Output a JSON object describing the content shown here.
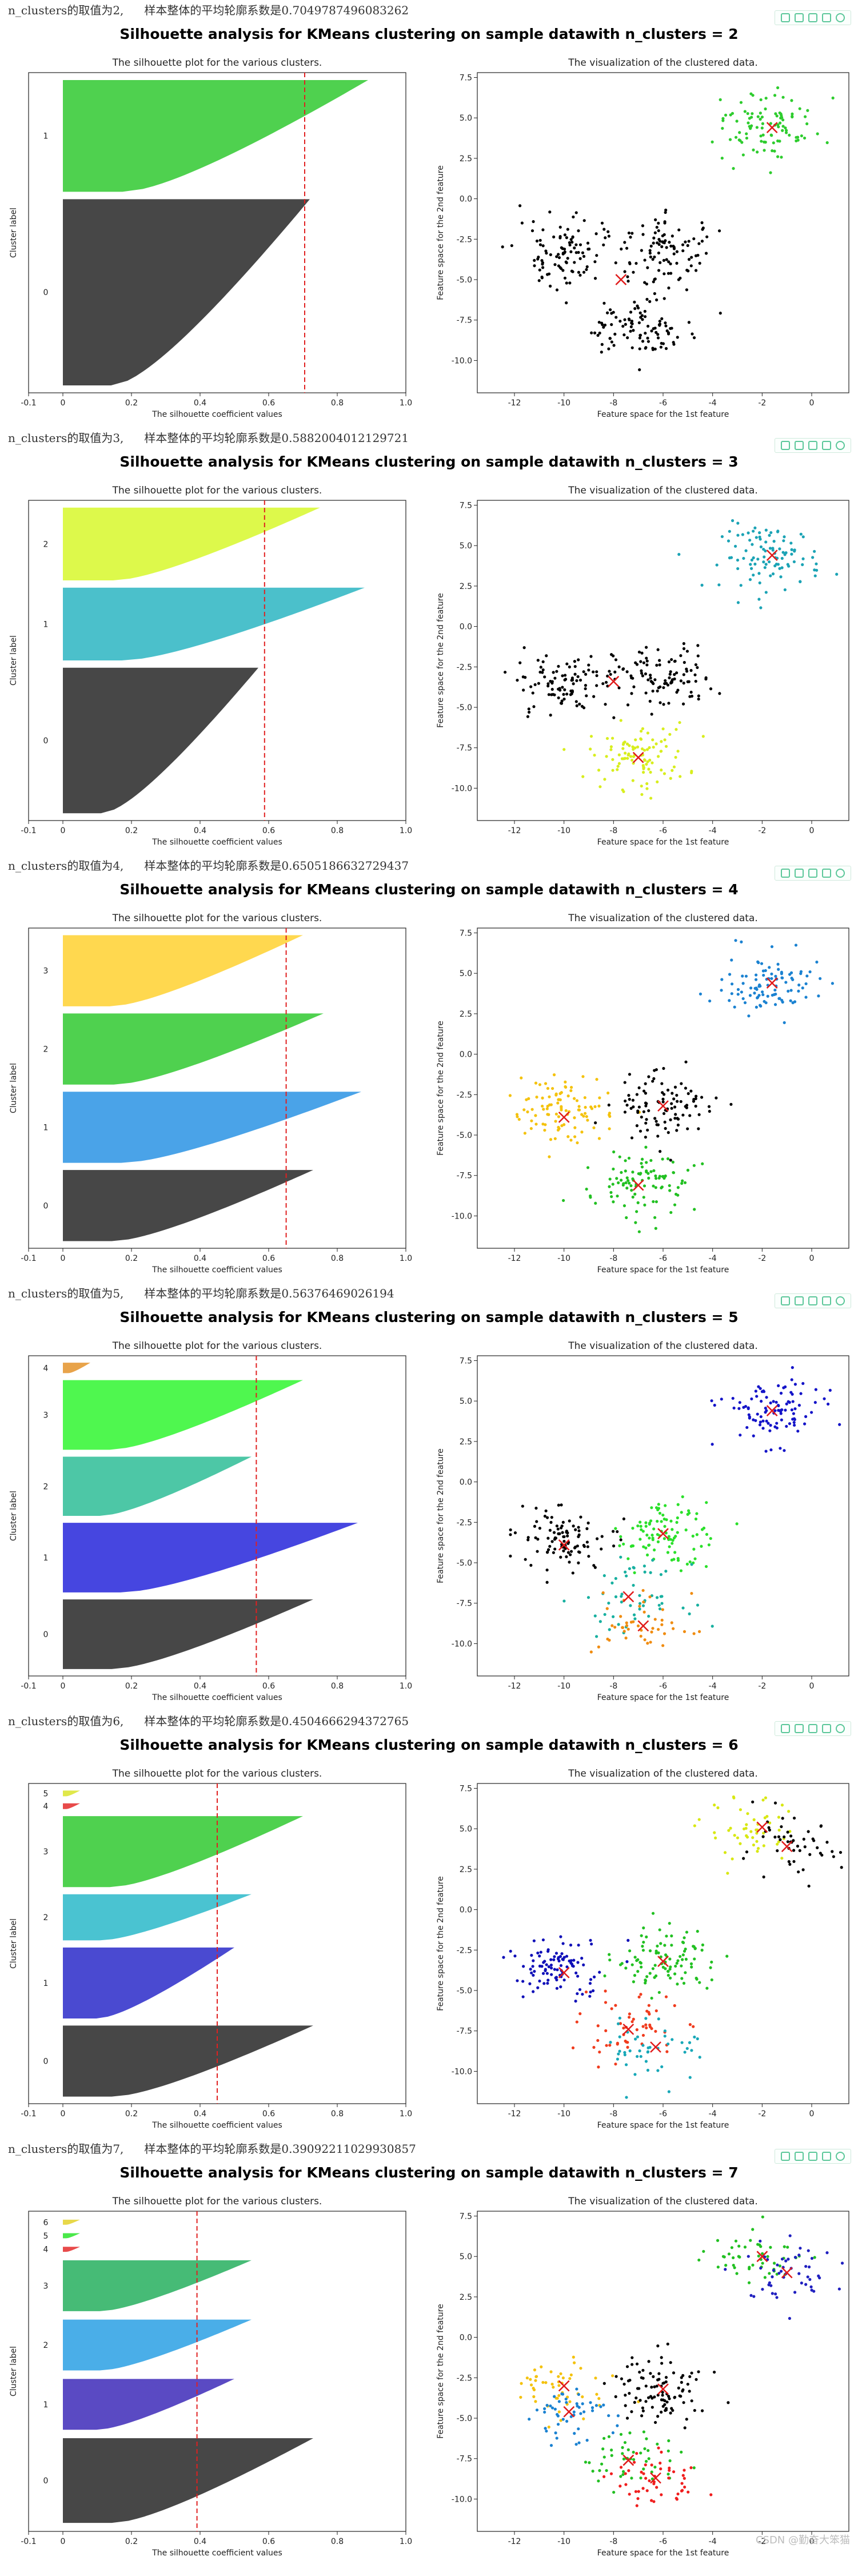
{
  "toolbar_icons": [
    "save-icon",
    "fullscreen-icon",
    "copy-icon",
    "export-icon",
    "settings-icon"
  ],
  "footer": "CSDN @勤奋大笨猫",
  "chart_data": [
    {
      "type": "scatter",
      "header": {
        "k_text": "n_clusters的取值为2,",
        "score_text": "样本整体的平均轮廓系数是0.7049787496083262"
      },
      "suptitle": "Silhouette analysis for KMeans clustering on sample datawith n_clusters = 2",
      "silhouette": {
        "title": "The silhouette plot for the various clusters.",
        "xlabel": "The silhouette coefficient values",
        "ylabel": "Cluster label",
        "xlim": [
          -0.1,
          1.0
        ],
        "xticks": [
          "-0.1",
          "0",
          "0.2",
          "0.4",
          "0.6",
          "0.8",
          "1.0"
        ],
        "avg": 0.705,
        "clusters": [
          {
            "label": "0",
            "size": 250,
            "max": 0.72,
            "color": "#474747"
          },
          {
            "label": "1",
            "size": 150,
            "max": 0.89,
            "color": "#4fd14f"
          }
        ]
      },
      "scatter": {
        "title": "The visualization of the clustered data.",
        "xlabel": "Feature space for the 1st feature",
        "ylabel": "Feature space for the 2nd feature",
        "xlim": [
          -13.5,
          1.5
        ],
        "ylim": [
          -12,
          7.8
        ],
        "xticks": [
          "-12",
          "-10",
          "-8",
          "-6",
          "-4",
          "-2",
          "0"
        ],
        "yticks": [
          "7.5",
          "5.0",
          "2.5",
          "0.0",
          "-2.5",
          "-5.0",
          "-7.5",
          "-10.0"
        ],
        "blobs": [
          {
            "cx": -10,
            "cy": -3.5,
            "n": 100,
            "color": "#000000"
          },
          {
            "cx": -6,
            "cy": -3.2,
            "n": 100,
            "color": "#000000"
          },
          {
            "cx": -7,
            "cy": -8,
            "n": 100,
            "color": "#000000"
          },
          {
            "cx": -1.6,
            "cy": 4.3,
            "n": 100,
            "color": "#2ecc2e"
          }
        ],
        "centers": [
          [
            -7.7,
            -5.0
          ],
          [
            -1.6,
            4.4
          ]
        ]
      }
    },
    {
      "type": "scatter",
      "header": {
        "k_text": "n_clusters的取值为3,",
        "score_text": "样本整体的平均轮廓系数是0.5882004012129721"
      },
      "suptitle": "Silhouette analysis for KMeans clustering on sample datawith n_clusters = 3",
      "silhouette": {
        "title": "The silhouette plot for the various clusters.",
        "xlabel": "The silhouette coefficient values",
        "ylabel": "Cluster label",
        "xlim": [
          -0.1,
          1.0
        ],
        "xticks": [
          "-0.1",
          "0",
          "0.2",
          "0.4",
          "0.6",
          "0.8",
          "1.0"
        ],
        "avg": 0.588,
        "clusters": [
          {
            "label": "0",
            "size": 200,
            "max": 0.57,
            "color": "#474747"
          },
          {
            "label": "1",
            "size": 100,
            "max": 0.88,
            "color": "#4bc0cb"
          },
          {
            "label": "2",
            "size": 100,
            "max": 0.75,
            "color": "#ddf94b"
          }
        ]
      },
      "scatter": {
        "title": "The visualization of the clustered data.",
        "xlabel": "Feature space for the 1st feature",
        "ylabel": "Feature space for the 2nd feature",
        "xlim": [
          -13.5,
          1.5
        ],
        "ylim": [
          -12,
          7.8
        ],
        "xticks": [
          "-12",
          "-10",
          "-8",
          "-6",
          "-4",
          "-2",
          "0"
        ],
        "yticks": [
          "7.5",
          "5.0",
          "2.5",
          "0.0",
          "-2.5",
          "-5.0",
          "-7.5",
          "-10.0"
        ],
        "blobs": [
          {
            "cx": -10,
            "cy": -3.5,
            "n": 100,
            "color": "#000000"
          },
          {
            "cx": -6,
            "cy": -3.2,
            "n": 100,
            "color": "#000000"
          },
          {
            "cx": -7,
            "cy": -8,
            "n": 100,
            "color": "#d8ee1e"
          },
          {
            "cx": -1.6,
            "cy": 4.3,
            "n": 100,
            "color": "#1ba3b5"
          }
        ],
        "centers": [
          [
            -8.0,
            -3.4
          ],
          [
            -1.6,
            4.4
          ],
          [
            -7.0,
            -8.1
          ]
        ]
      }
    },
    {
      "type": "scatter",
      "header": {
        "k_text": "n_clusters的取值为4,",
        "score_text": "样本整体的平均轮廓系数是0.6505186632729437"
      },
      "suptitle": "Silhouette analysis for KMeans clustering on sample datawith n_clusters = 4",
      "silhouette": {
        "title": "The silhouette plot for the various clusters.",
        "xlabel": "The silhouette coefficient values",
        "ylabel": "Cluster label",
        "xlim": [
          -0.1,
          1.0
        ],
        "xticks": [
          "-0.1",
          "0",
          "0.2",
          "0.4",
          "0.6",
          "0.8",
          "1.0"
        ],
        "avg": 0.651,
        "clusters": [
          {
            "label": "0",
            "size": 100,
            "max": 0.73,
            "color": "#474747"
          },
          {
            "label": "1",
            "size": 100,
            "max": 0.87,
            "color": "#4aa3e8"
          },
          {
            "label": "2",
            "size": 100,
            "max": 0.76,
            "color": "#4fd14f"
          },
          {
            "label": "3",
            "size": 100,
            "max": 0.7,
            "color": "#ffd84f"
          }
        ]
      },
      "scatter": {
        "title": "The visualization of the clustered data.",
        "xlabel": "Feature space for the 1st feature",
        "ylabel": "Feature space for the 2nd feature",
        "xlim": [
          -13.5,
          1.5
        ],
        "ylim": [
          -12,
          7.8
        ],
        "xticks": [
          "-12",
          "-10",
          "-8",
          "-6",
          "-4",
          "-2",
          "0"
        ],
        "yticks": [
          "7.5",
          "5.0",
          "2.5",
          "0.0",
          "-2.5",
          "-5.0",
          "-7.5",
          "-10.0"
        ],
        "blobs": [
          {
            "cx": -10,
            "cy": -3.5,
            "n": 100,
            "color": "#f4c20d"
          },
          {
            "cx": -6,
            "cy": -3.2,
            "n": 100,
            "color": "#000000"
          },
          {
            "cx": -7,
            "cy": -8,
            "n": 100,
            "color": "#22c022"
          },
          {
            "cx": -1.6,
            "cy": 4.3,
            "n": 100,
            "color": "#1b82d1"
          }
        ],
        "centers": [
          [
            -10.0,
            -3.9
          ],
          [
            -6.0,
            -3.2
          ],
          [
            -7.0,
            -8.1
          ],
          [
            -1.6,
            4.4
          ]
        ]
      }
    },
    {
      "type": "scatter",
      "header": {
        "k_text": "n_clusters的取值为5,",
        "score_text": "样本整体的平均轮廓系数是0.56376469026194"
      },
      "suptitle": "Silhouette analysis for KMeans clustering on sample datawith n_clusters = 5",
      "silhouette": {
        "title": "The silhouette plot for the various clusters.",
        "xlabel": "The silhouette coefficient values",
        "ylabel": "Cluster label",
        "xlim": [
          -0.1,
          1.0
        ],
        "xticks": [
          "-0.1",
          "0",
          "0.2",
          "0.4",
          "0.6",
          "0.8",
          "1.0"
        ],
        "avg": 0.564,
        "clusters": [
          {
            "label": "0",
            "size": 100,
            "max": 0.73,
            "color": "#474747"
          },
          {
            "label": "1",
            "size": 100,
            "max": 0.86,
            "color": "#4646e0"
          },
          {
            "label": "2",
            "size": 85,
            "max": 0.55,
            "color": "#4dc7a6"
          },
          {
            "label": "3",
            "size": 100,
            "max": 0.7,
            "color": "#4ff74f"
          },
          {
            "label": "4",
            "size": 15,
            "max": 0.08,
            "color": "#e8a34a"
          }
        ]
      },
      "scatter": {
        "title": "The visualization of the clustered data.",
        "xlabel": "Feature space for the 1st feature",
        "ylabel": "Feature space for the 2nd feature",
        "xlim": [
          -13.5,
          1.5
        ],
        "ylim": [
          -12,
          7.8
        ],
        "xticks": [
          "-12",
          "-10",
          "-8",
          "-6",
          "-4",
          "-2",
          "0"
        ],
        "yticks": [
          "7.5",
          "5.0",
          "2.5",
          "0.0",
          "-2.5",
          "-5.0",
          "-7.5",
          "-10.0"
        ],
        "blobs": [
          {
            "cx": -10,
            "cy": -3.5,
            "n": 100,
            "color": "#000000"
          },
          {
            "cx": -6,
            "cy": -3.2,
            "n": 100,
            "color": "#2be02b"
          },
          {
            "cx": -7.2,
            "cy": -7.2,
            "n": 55,
            "color": "#18b0a0"
          },
          {
            "cx": -6.8,
            "cy": -8.8,
            "n": 45,
            "color": "#f08c10"
          },
          {
            "cx": -1.6,
            "cy": 4.3,
            "n": 100,
            "color": "#1414c8"
          }
        ],
        "centers": [
          [
            -10.0,
            -3.9
          ],
          [
            -6.0,
            -3.2
          ],
          [
            -7.4,
            -7.1
          ],
          [
            -6.8,
            -8.9
          ],
          [
            -1.6,
            4.4
          ]
        ]
      }
    },
    {
      "type": "scatter",
      "header": {
        "k_text": "n_clusters的取值为6,",
        "score_text": "样本整体的平均轮廓系数是0.4504666294372765"
      },
      "suptitle": "Silhouette analysis for KMeans clustering on sample datawith n_clusters = 6",
      "silhouette": {
        "title": "The silhouette plot for the various clusters.",
        "xlabel": "The silhouette coefficient values",
        "ylabel": "Cluster label",
        "xlim": [
          -0.1,
          1.0
        ],
        "xticks": [
          "-0.1",
          "0",
          "0.2",
          "0.4",
          "0.6",
          "0.8",
          "1.0"
        ],
        "avg": 0.45,
        "clusters": [
          {
            "label": "0",
            "size": 100,
            "max": 0.73,
            "color": "#474747"
          },
          {
            "label": "1",
            "size": 100,
            "max": 0.5,
            "color": "#4a4ad1"
          },
          {
            "label": "2",
            "size": 65,
            "max": 0.55,
            "color": "#4ac3d1"
          },
          {
            "label": "3",
            "size": 100,
            "max": 0.7,
            "color": "#4fd14f"
          },
          {
            "label": "4",
            "size": 8,
            "max": 0.05,
            "color": "#e84a4a"
          },
          {
            "label": "5",
            "size": 8,
            "max": 0.05,
            "color": "#e0e84a"
          }
        ]
      },
      "scatter": {
        "title": "The visualization of the clustered data.",
        "xlabel": "Feature space for the 1st feature",
        "ylabel": "Feature space for the 2nd feature",
        "xlim": [
          -13.5,
          1.5
        ],
        "ylim": [
          -12,
          7.8
        ],
        "xticks": [
          "-12",
          "-10",
          "-8",
          "-6",
          "-4",
          "-2",
          "0"
        ],
        "yticks": [
          "7.5",
          "5.0",
          "2.5",
          "0.0",
          "-2.5",
          "-5.0",
          "-7.5",
          "-10.0"
        ],
        "blobs": [
          {
            "cx": -10,
            "cy": -3.5,
            "n": 100,
            "color": "#1010b8"
          },
          {
            "cx": -6,
            "cy": -3.2,
            "n": 100,
            "color": "#22c022"
          },
          {
            "cx": -7.4,
            "cy": -7.3,
            "n": 55,
            "color": "#f03c1e"
          },
          {
            "cx": -6.3,
            "cy": -8.6,
            "n": 45,
            "color": "#18a8b8"
          },
          {
            "cx": -2.4,
            "cy": 4.8,
            "n": 50,
            "color": "#d8e812"
          },
          {
            "cx": -0.9,
            "cy": 3.8,
            "n": 50,
            "color": "#000000"
          }
        ],
        "centers": [
          [
            -10.0,
            -3.9
          ],
          [
            -6.0,
            -3.2
          ],
          [
            -7.4,
            -7.4
          ],
          [
            -6.3,
            -8.5
          ],
          [
            -2.0,
            5.1
          ],
          [
            -1.0,
            3.9
          ]
        ]
      }
    },
    {
      "type": "scatter",
      "header": {
        "k_text": "n_clusters的取值为7,",
        "score_text": "样本整体的平均轮廓系数是0.39092211029930857"
      },
      "suptitle": "Silhouette analysis for KMeans clustering on sample datawith n_clusters = 7",
      "silhouette": {
        "title": "The silhouette plot for the various clusters.",
        "xlabel": "The silhouette coefficient values",
        "ylabel": "Cluster label",
        "xlim": [
          -0.1,
          1.0
        ],
        "xticks": [
          "-0.1",
          "0",
          "0.2",
          "0.4",
          "0.6",
          "0.8",
          "1.0"
        ],
        "avg": 0.391,
        "clusters": [
          {
            "label": "0",
            "size": 100,
            "max": 0.73,
            "color": "#474747"
          },
          {
            "label": "1",
            "size": 60,
            "max": 0.5,
            "color": "#5a4ac3"
          },
          {
            "label": "2",
            "size": 60,
            "max": 0.55,
            "color": "#4aaee8"
          },
          {
            "label": "3",
            "size": 60,
            "max": 0.55,
            "color": "#46bb76"
          },
          {
            "label": "4",
            "size": 6,
            "max": 0.05,
            "color": "#e84a4a"
          },
          {
            "label": "5",
            "size": 6,
            "max": 0.05,
            "color": "#4ae84a"
          },
          {
            "label": "6",
            "size": 6,
            "max": 0.05,
            "color": "#e8d84a"
          }
        ]
      },
      "scatter": {
        "title": "The visualization of the clustered data.",
        "xlabel": "Feature space for the 1st feature",
        "ylabel": "Feature space for the 2nd feature",
        "xlim": [
          -13.5,
          1.5
        ],
        "ylim": [
          -12,
          7.8
        ],
        "xticks": [
          "-12",
          "-10",
          "-8",
          "-6",
          "-4",
          "-2",
          "0"
        ],
        "yticks": [
          "7.5",
          "5.0",
          "2.5",
          "0.0",
          "-2.5",
          "-5.0",
          "-7.5",
          "-10.0"
        ],
        "blobs": [
          {
            "cx": -10.3,
            "cy": -3.0,
            "n": 50,
            "color": "#f4c20d"
          },
          {
            "cx": -9.8,
            "cy": -4.6,
            "n": 50,
            "color": "#1b82d1"
          },
          {
            "cx": -6,
            "cy": -3.2,
            "n": 100,
            "color": "#000000"
          },
          {
            "cx": -7.4,
            "cy": -7.4,
            "n": 50,
            "color": "#22c022"
          },
          {
            "cx": -6.3,
            "cy": -8.8,
            "n": 50,
            "color": "#f01e1e"
          },
          {
            "cx": -2.3,
            "cy": 4.8,
            "n": 50,
            "color": "#22c022"
          },
          {
            "cx": -1.0,
            "cy": 3.8,
            "n": 50,
            "color": "#2020c0"
          }
        ],
        "centers": [
          [
            -10.0,
            -3.0
          ],
          [
            -9.8,
            -4.6
          ],
          [
            -6.0,
            -3.2
          ],
          [
            -7.4,
            -7.6
          ],
          [
            -6.3,
            -8.7
          ],
          [
            -2.0,
            5.0
          ],
          [
            -1.0,
            4.0
          ]
        ]
      }
    }
  ]
}
